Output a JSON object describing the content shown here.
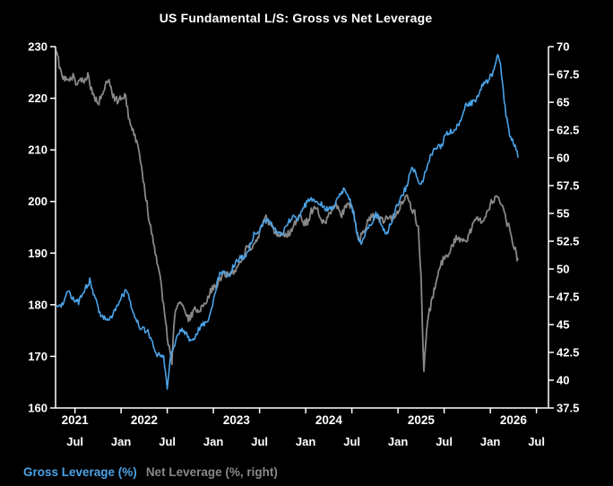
{
  "title": "US Fundamental L/S: Gross vs Net Leverage",
  "legend": {
    "gross": "Gross Leverage (%)",
    "net": "Net Leverage (%, right)"
  },
  "colors": {
    "background": "#000000",
    "gross": "#4ba3e8",
    "net": "#888888",
    "axis": "#ffffff",
    "text": "#ffffff"
  },
  "chart_data": {
    "type": "line",
    "title": "US Fundamental L/S: Gross vs Net Leverage",
    "grid": "off",
    "legend_position": "bottom-left",
    "x_axis": {
      "min": 2021.29,
      "max": 2026.63,
      "year_labels": [
        {
          "label": "2021",
          "x": 2021.5
        },
        {
          "label": "2022",
          "x": 2022.25
        },
        {
          "label": "2023",
          "x": 2023.25
        },
        {
          "label": "2024",
          "x": 2024.25
        },
        {
          "label": "2025",
          "x": 2025.25
        },
        {
          "label": "2026",
          "x": 2026.25
        }
      ],
      "month_ticks": [
        {
          "label": "Jul",
          "x": 2021.5
        },
        {
          "label": "Jan",
          "x": 2022.0
        },
        {
          "label": "Jul",
          "x": 2022.5
        },
        {
          "label": "Jan",
          "x": 2023.0
        },
        {
          "label": "Jul",
          "x": 2023.5
        },
        {
          "label": "Jan",
          "x": 2024.0
        },
        {
          "label": "Jul",
          "x": 2024.5
        },
        {
          "label": "Jan",
          "x": 2025.0
        },
        {
          "label": "Jul",
          "x": 2025.5
        },
        {
          "label": "Jan",
          "x": 2026.0
        },
        {
          "label": "Jul",
          "x": 2026.5
        }
      ]
    },
    "left_axis": {
      "label": "Gross Leverage (%)",
      "min": 160,
      "max": 230,
      "ticks": [
        160,
        170,
        180,
        190,
        200,
        210,
        220,
        230
      ],
      "tick_labels": [
        "160",
        "170",
        "180",
        "190",
        "200",
        "210",
        "220",
        "230"
      ]
    },
    "right_axis": {
      "label": "Net Leverage (%, right)",
      "min": 37.5,
      "max": 70,
      "ticks": [
        37.5,
        40,
        42.5,
        45,
        47.5,
        50,
        52.5,
        55,
        57.5,
        60,
        62.5,
        65,
        67.5,
        70
      ],
      "tick_labels": [
        "37.5",
        "40",
        "42.5",
        "45",
        "47.5",
        "50",
        "52.5",
        "55",
        "57.5",
        "60",
        "62.5",
        "65",
        "67.5",
        "70"
      ]
    },
    "series": [
      {
        "id": "net-leverage",
        "name": "Net Leverage (%, right)",
        "axis": "right",
        "color": "#888888",
        "width": 1.8,
        "visual_noise": 0.55,
        "points": [
          [
            2021.3,
            69.8
          ],
          [
            2021.33,
            68.5
          ],
          [
            2021.36,
            67.5
          ],
          [
            2021.4,
            67.0
          ],
          [
            2021.44,
            66.5
          ],
          [
            2021.48,
            67.2
          ],
          [
            2021.52,
            66.8
          ],
          [
            2021.56,
            67.5
          ],
          [
            2021.6,
            66.5
          ],
          [
            2021.64,
            67.2
          ],
          [
            2021.68,
            66.0
          ],
          [
            2021.72,
            65.5
          ],
          [
            2021.76,
            65.2
          ],
          [
            2021.8,
            65.8
          ],
          [
            2021.84,
            66.3
          ],
          [
            2021.88,
            66.8
          ],
          [
            2021.92,
            65.8
          ],
          [
            2021.96,
            65.2
          ],
          [
            2022.0,
            65.0
          ],
          [
            2022.04,
            65.5
          ],
          [
            2022.08,
            64.0
          ],
          [
            2022.12,
            63.0
          ],
          [
            2022.16,
            61.5
          ],
          [
            2022.2,
            60.0
          ],
          [
            2022.24,
            58.0
          ],
          [
            2022.28,
            56.0
          ],
          [
            2022.32,
            54.0
          ],
          [
            2022.36,
            52.0
          ],
          [
            2022.4,
            50.0
          ],
          [
            2022.44,
            48.0
          ],
          [
            2022.48,
            45.5
          ],
          [
            2022.52,
            43.0
          ],
          [
            2022.55,
            41.3
          ],
          [
            2022.58,
            45.5
          ],
          [
            2022.62,
            46.5
          ],
          [
            2022.66,
            47.0
          ],
          [
            2022.7,
            46.0
          ],
          [
            2022.74,
            45.5
          ],
          [
            2022.78,
            45.8
          ],
          [
            2022.82,
            46.3
          ],
          [
            2022.86,
            46.8
          ],
          [
            2022.9,
            47.0
          ],
          [
            2022.94,
            47.3
          ],
          [
            2022.98,
            47.8
          ],
          [
            2023.02,
            48.5
          ],
          [
            2023.06,
            49.2
          ],
          [
            2023.1,
            49.6
          ],
          [
            2023.14,
            49.2
          ],
          [
            2023.18,
            49.5
          ],
          [
            2023.22,
            50.0
          ],
          [
            2023.26,
            50.3
          ],
          [
            2023.3,
            50.8
          ],
          [
            2023.34,
            51.2
          ],
          [
            2023.38,
            51.8
          ],
          [
            2023.42,
            52.3
          ],
          [
            2023.46,
            52.8
          ],
          [
            2023.5,
            53.3
          ],
          [
            2023.54,
            54.0
          ],
          [
            2023.58,
            54.5
          ],
          [
            2023.62,
            54.2
          ],
          [
            2023.66,
            53.6
          ],
          [
            2023.7,
            53.0
          ],
          [
            2023.74,
            52.8
          ],
          [
            2023.78,
            53.2
          ],
          [
            2023.82,
            53.6
          ],
          [
            2023.86,
            53.8
          ],
          [
            2023.9,
            54.2
          ],
          [
            2023.94,
            54.5
          ],
          [
            2023.98,
            54.2
          ],
          [
            2024.02,
            54.6
          ],
          [
            2024.06,
            55.2
          ],
          [
            2024.1,
            55.5
          ],
          [
            2024.14,
            54.8
          ],
          [
            2024.18,
            54.3
          ],
          [
            2024.22,
            54.6
          ],
          [
            2024.26,
            55.0
          ],
          [
            2024.3,
            55.3
          ],
          [
            2024.34,
            55.6
          ],
          [
            2024.38,
            55.2
          ],
          [
            2024.42,
            55.5
          ],
          [
            2024.46,
            55.8
          ],
          [
            2024.5,
            55.3
          ],
          [
            2024.54,
            54.0
          ],
          [
            2024.58,
            52.8
          ],
          [
            2024.62,
            53.5
          ],
          [
            2024.66,
            54.0
          ],
          [
            2024.7,
            54.3
          ],
          [
            2024.74,
            54.8
          ],
          [
            2024.78,
            55.0
          ],
          [
            2024.82,
            54.5
          ],
          [
            2024.86,
            54.2
          ],
          [
            2024.9,
            54.5
          ],
          [
            2024.94,
            54.8
          ],
          [
            2024.98,
            55.2
          ],
          [
            2025.02,
            55.5
          ],
          [
            2025.06,
            56.0
          ],
          [
            2025.1,
            56.3
          ],
          [
            2025.14,
            55.8
          ],
          [
            2025.18,
            55.2
          ],
          [
            2025.22,
            53.5
          ],
          [
            2025.25,
            49.0
          ],
          [
            2025.28,
            40.5
          ],
          [
            2025.31,
            44.5
          ],
          [
            2025.34,
            46.5
          ],
          [
            2025.38,
            47.8
          ],
          [
            2025.42,
            49.0
          ],
          [
            2025.46,
            50.0
          ],
          [
            2025.5,
            51.0
          ],
          [
            2025.54,
            51.5
          ],
          [
            2025.58,
            52.0
          ],
          [
            2025.62,
            52.3
          ],
          [
            2025.66,
            52.6
          ],
          [
            2025.7,
            52.5
          ],
          [
            2025.74,
            53.0
          ],
          [
            2025.78,
            53.3
          ],
          [
            2025.82,
            53.8
          ],
          [
            2025.86,
            54.2
          ],
          [
            2025.9,
            54.5
          ],
          [
            2025.94,
            55.0
          ],
          [
            2025.98,
            55.3
          ],
          [
            2026.02,
            55.8
          ],
          [
            2026.06,
            56.2
          ],
          [
            2026.1,
            56.5
          ],
          [
            2026.14,
            55.5
          ],
          [
            2026.18,
            54.0
          ],
          [
            2026.22,
            53.0
          ],
          [
            2026.26,
            52.0
          ],
          [
            2026.3,
            51.0
          ]
        ]
      },
      {
        "id": "gross-leverage",
        "name": "Gross Leverage (%)",
        "axis": "left",
        "color": "#4ba3e8",
        "width": 1.6,
        "visual_noise": 0.9,
        "points": [
          [
            2021.3,
            180.5
          ],
          [
            2021.34,
            179.0
          ],
          [
            2021.38,
            180.0
          ],
          [
            2021.42,
            183.0
          ],
          [
            2021.46,
            182.0
          ],
          [
            2021.5,
            181.0
          ],
          [
            2021.54,
            180.0
          ],
          [
            2021.58,
            182.0
          ],
          [
            2021.62,
            184.0
          ],
          [
            2021.66,
            185.0
          ],
          [
            2021.7,
            182.0
          ],
          [
            2021.74,
            179.5
          ],
          [
            2021.78,
            177.5
          ],
          [
            2021.82,
            178.0
          ],
          [
            2021.86,
            177.5
          ],
          [
            2021.9,
            177.0
          ],
          [
            2021.94,
            179.0
          ],
          [
            2021.98,
            180.5
          ],
          [
            2022.02,
            182.5
          ],
          [
            2022.06,
            183.0
          ],
          [
            2022.1,
            180.0
          ],
          [
            2022.14,
            178.0
          ],
          [
            2022.18,
            177.0
          ],
          [
            2022.22,
            176.0
          ],
          [
            2022.26,
            175.0
          ],
          [
            2022.3,
            174.0
          ],
          [
            2022.34,
            172.5
          ],
          [
            2022.38,
            171.0
          ],
          [
            2022.42,
            170.5
          ],
          [
            2022.46,
            170.0
          ],
          [
            2022.5,
            163.5
          ],
          [
            2022.53,
            169.0
          ],
          [
            2022.56,
            172.0
          ],
          [
            2022.6,
            174.0
          ],
          [
            2022.64,
            175.0
          ],
          [
            2022.68,
            174.5
          ],
          [
            2022.72,
            173.5
          ],
          [
            2022.76,
            173.0
          ],
          [
            2022.8,
            174.0
          ],
          [
            2022.84,
            175.0
          ],
          [
            2022.88,
            175.5
          ],
          [
            2022.92,
            176.5
          ],
          [
            2022.96,
            178.0
          ],
          [
            2023.0,
            181.0
          ],
          [
            2023.04,
            184.0
          ],
          [
            2023.08,
            186.0
          ],
          [
            2023.12,
            186.5
          ],
          [
            2023.16,
            186.0
          ],
          [
            2023.2,
            187.0
          ],
          [
            2023.24,
            187.5
          ],
          [
            2023.28,
            188.5
          ],
          [
            2023.32,
            189.5
          ],
          [
            2023.36,
            190.5
          ],
          [
            2023.4,
            191.5
          ],
          [
            2023.44,
            193.0
          ],
          [
            2023.48,
            194.0
          ],
          [
            2023.52,
            195.5
          ],
          [
            2023.56,
            196.5
          ],
          [
            2023.6,
            196.0
          ],
          [
            2023.64,
            195.0
          ],
          [
            2023.68,
            194.0
          ],
          [
            2023.72,
            194.0
          ],
          [
            2023.76,
            194.5
          ],
          [
            2023.8,
            195.5
          ],
          [
            2023.84,
            196.0
          ],
          [
            2023.88,
            197.0
          ],
          [
            2023.92,
            197.5
          ],
          [
            2023.96,
            198.5
          ],
          [
            2024.0,
            199.0
          ],
          [
            2024.04,
            200.0
          ],
          [
            2024.08,
            200.5
          ],
          [
            2024.12,
            201.0
          ],
          [
            2024.16,
            199.5
          ],
          [
            2024.2,
            198.5
          ],
          [
            2024.24,
            198.0
          ],
          [
            2024.28,
            199.0
          ],
          [
            2024.32,
            200.0
          ],
          [
            2024.36,
            200.5
          ],
          [
            2024.4,
            201.5
          ],
          [
            2024.44,
            202.0
          ],
          [
            2024.48,
            201.0
          ],
          [
            2024.52,
            198.0
          ],
          [
            2024.56,
            193.0
          ],
          [
            2024.6,
            191.0
          ],
          [
            2024.64,
            193.5
          ],
          [
            2024.68,
            195.5
          ],
          [
            2024.72,
            196.5
          ],
          [
            2024.76,
            197.0
          ],
          [
            2024.8,
            196.0
          ],
          [
            2024.84,
            195.0
          ],
          [
            2024.88,
            194.5
          ],
          [
            2024.92,
            195.5
          ],
          [
            2024.96,
            197.0
          ],
          [
            2025.0,
            199.5
          ],
          [
            2025.04,
            201.5
          ],
          [
            2025.08,
            203.0
          ],
          [
            2025.12,
            204.5
          ],
          [
            2025.16,
            206.0
          ],
          [
            2025.2,
            205.0
          ],
          [
            2025.24,
            203.5
          ],
          [
            2025.28,
            205.0
          ],
          [
            2025.32,
            207.0
          ],
          [
            2025.36,
            208.5
          ],
          [
            2025.4,
            210.0
          ],
          [
            2025.44,
            211.0
          ],
          [
            2025.48,
            211.5
          ],
          [
            2025.52,
            212.5
          ],
          [
            2025.56,
            213.0
          ],
          [
            2025.6,
            214.0
          ],
          [
            2025.64,
            215.0
          ],
          [
            2025.68,
            216.0
          ],
          [
            2025.72,
            217.5
          ],
          [
            2025.76,
            218.5
          ],
          [
            2025.8,
            219.5
          ],
          [
            2025.84,
            220.0
          ],
          [
            2025.88,
            221.0
          ],
          [
            2025.92,
            222.0
          ],
          [
            2025.96,
            223.0
          ],
          [
            2026.0,
            224.5
          ],
          [
            2026.04,
            226.0
          ],
          [
            2026.08,
            228.0
          ],
          [
            2026.11,
            226.0
          ],
          [
            2026.14,
            221.0
          ],
          [
            2026.17,
            217.0
          ],
          [
            2026.2,
            214.0
          ],
          [
            2026.24,
            212.0
          ],
          [
            2026.27,
            210.5
          ],
          [
            2026.3,
            208.5
          ]
        ]
      }
    ]
  }
}
